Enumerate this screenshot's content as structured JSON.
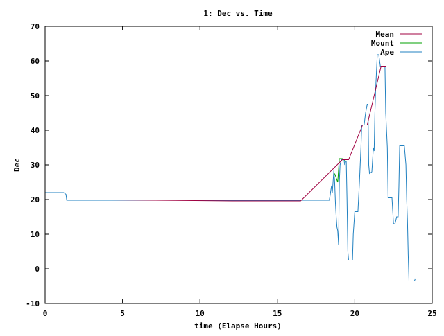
{
  "chart_data": {
    "type": "line",
    "title": "1: Dec vs. Time",
    "xlabel": "time (Elapse Hours)",
    "ylabel": "Dec",
    "xlim": [
      0,
      25
    ],
    "ylim": [
      -10,
      70
    ],
    "xticks": [
      0,
      5,
      10,
      15,
      20,
      25
    ],
    "yticks": [
      -10,
      0,
      10,
      20,
      30,
      40,
      50,
      60,
      70
    ],
    "legend_position": "top-right",
    "grid": false,
    "series": [
      {
        "name": "Mean",
        "color": "#a00040",
        "points": [
          [
            2.2,
            19.9
          ],
          [
            4.3,
            19.9
          ],
          [
            12.1,
            19.6
          ],
          [
            16.5,
            19.6
          ],
          [
            19.2,
            31.5
          ],
          [
            19.6,
            31.5
          ],
          [
            20.5,
            41.5
          ],
          [
            20.8,
            41.5
          ],
          [
            21.7,
            58.5
          ],
          [
            22.0,
            58.5
          ]
        ]
      },
      {
        "name": "Mount",
        "color": "#00a000",
        "points": [
          [
            18.7,
            27.5
          ],
          [
            18.9,
            25.0
          ],
          [
            19.0,
            31.8
          ],
          [
            19.2,
            31.8
          ],
          [
            19.4,
            31.2
          ]
        ]
      },
      {
        "name": "Ape",
        "color": "#2080c0",
        "points": [
          [
            0.0,
            22.0
          ],
          [
            1.2,
            22.0
          ],
          [
            1.35,
            21.5
          ],
          [
            1.4,
            19.8
          ],
          [
            2.0,
            19.8
          ],
          [
            4.0,
            19.8
          ],
          [
            8.0,
            19.8
          ],
          [
            12.0,
            19.8
          ],
          [
            15.0,
            19.8
          ],
          [
            18.0,
            19.8
          ],
          [
            18.35,
            19.8
          ],
          [
            18.4,
            21.0
          ],
          [
            18.5,
            24.0
          ],
          [
            18.55,
            22.0
          ],
          [
            18.65,
            28.5
          ],
          [
            18.7,
            25.0
          ],
          [
            18.75,
            19.0
          ],
          [
            18.8,
            15.0
          ],
          [
            18.85,
            12.0
          ],
          [
            18.9,
            11.0
          ],
          [
            18.95,
            7.0
          ],
          [
            19.0,
            25.0
          ],
          [
            19.05,
            30.0
          ],
          [
            19.15,
            31.5
          ],
          [
            19.3,
            31.5
          ],
          [
            19.35,
            30.0
          ],
          [
            19.4,
            31.0
          ],
          [
            19.45,
            31.0
          ],
          [
            19.5,
            20.0
          ],
          [
            19.55,
            5.0
          ],
          [
            19.6,
            2.5
          ],
          [
            19.85,
            2.5
          ],
          [
            19.9,
            10.0
          ],
          [
            20.0,
            16.5
          ],
          [
            20.2,
            16.5
          ],
          [
            20.3,
            25.0
          ],
          [
            20.4,
            35.0
          ],
          [
            20.45,
            41.5
          ],
          [
            20.6,
            41.5
          ],
          [
            20.7,
            45.0
          ],
          [
            20.8,
            47.5
          ],
          [
            20.85,
            47.5
          ],
          [
            20.9,
            30.0
          ],
          [
            20.95,
            27.5
          ],
          [
            21.1,
            28.0
          ],
          [
            21.2,
            35.0
          ],
          [
            21.25,
            34.0
          ],
          [
            21.3,
            45.0
          ],
          [
            21.35,
            52.0
          ],
          [
            21.45,
            61.8
          ],
          [
            21.55,
            61.8
          ],
          [
            21.65,
            58.5
          ],
          [
            21.95,
            58.5
          ],
          [
            22.0,
            45.0
          ],
          [
            22.1,
            35.0
          ],
          [
            22.15,
            20.5
          ],
          [
            22.4,
            20.5
          ],
          [
            22.5,
            13.0
          ],
          [
            22.6,
            13.0
          ],
          [
            22.7,
            15.0
          ],
          [
            22.8,
            15.0
          ],
          [
            22.85,
            24.0
          ],
          [
            22.9,
            35.5
          ],
          [
            23.2,
            35.5
          ],
          [
            23.3,
            30.0
          ],
          [
            23.35,
            20.0
          ],
          [
            23.4,
            14.0
          ],
          [
            23.45,
            4.0
          ],
          [
            23.5,
            -3.5
          ],
          [
            23.85,
            -3.5
          ],
          [
            23.9,
            -3.0
          ]
        ]
      }
    ]
  }
}
